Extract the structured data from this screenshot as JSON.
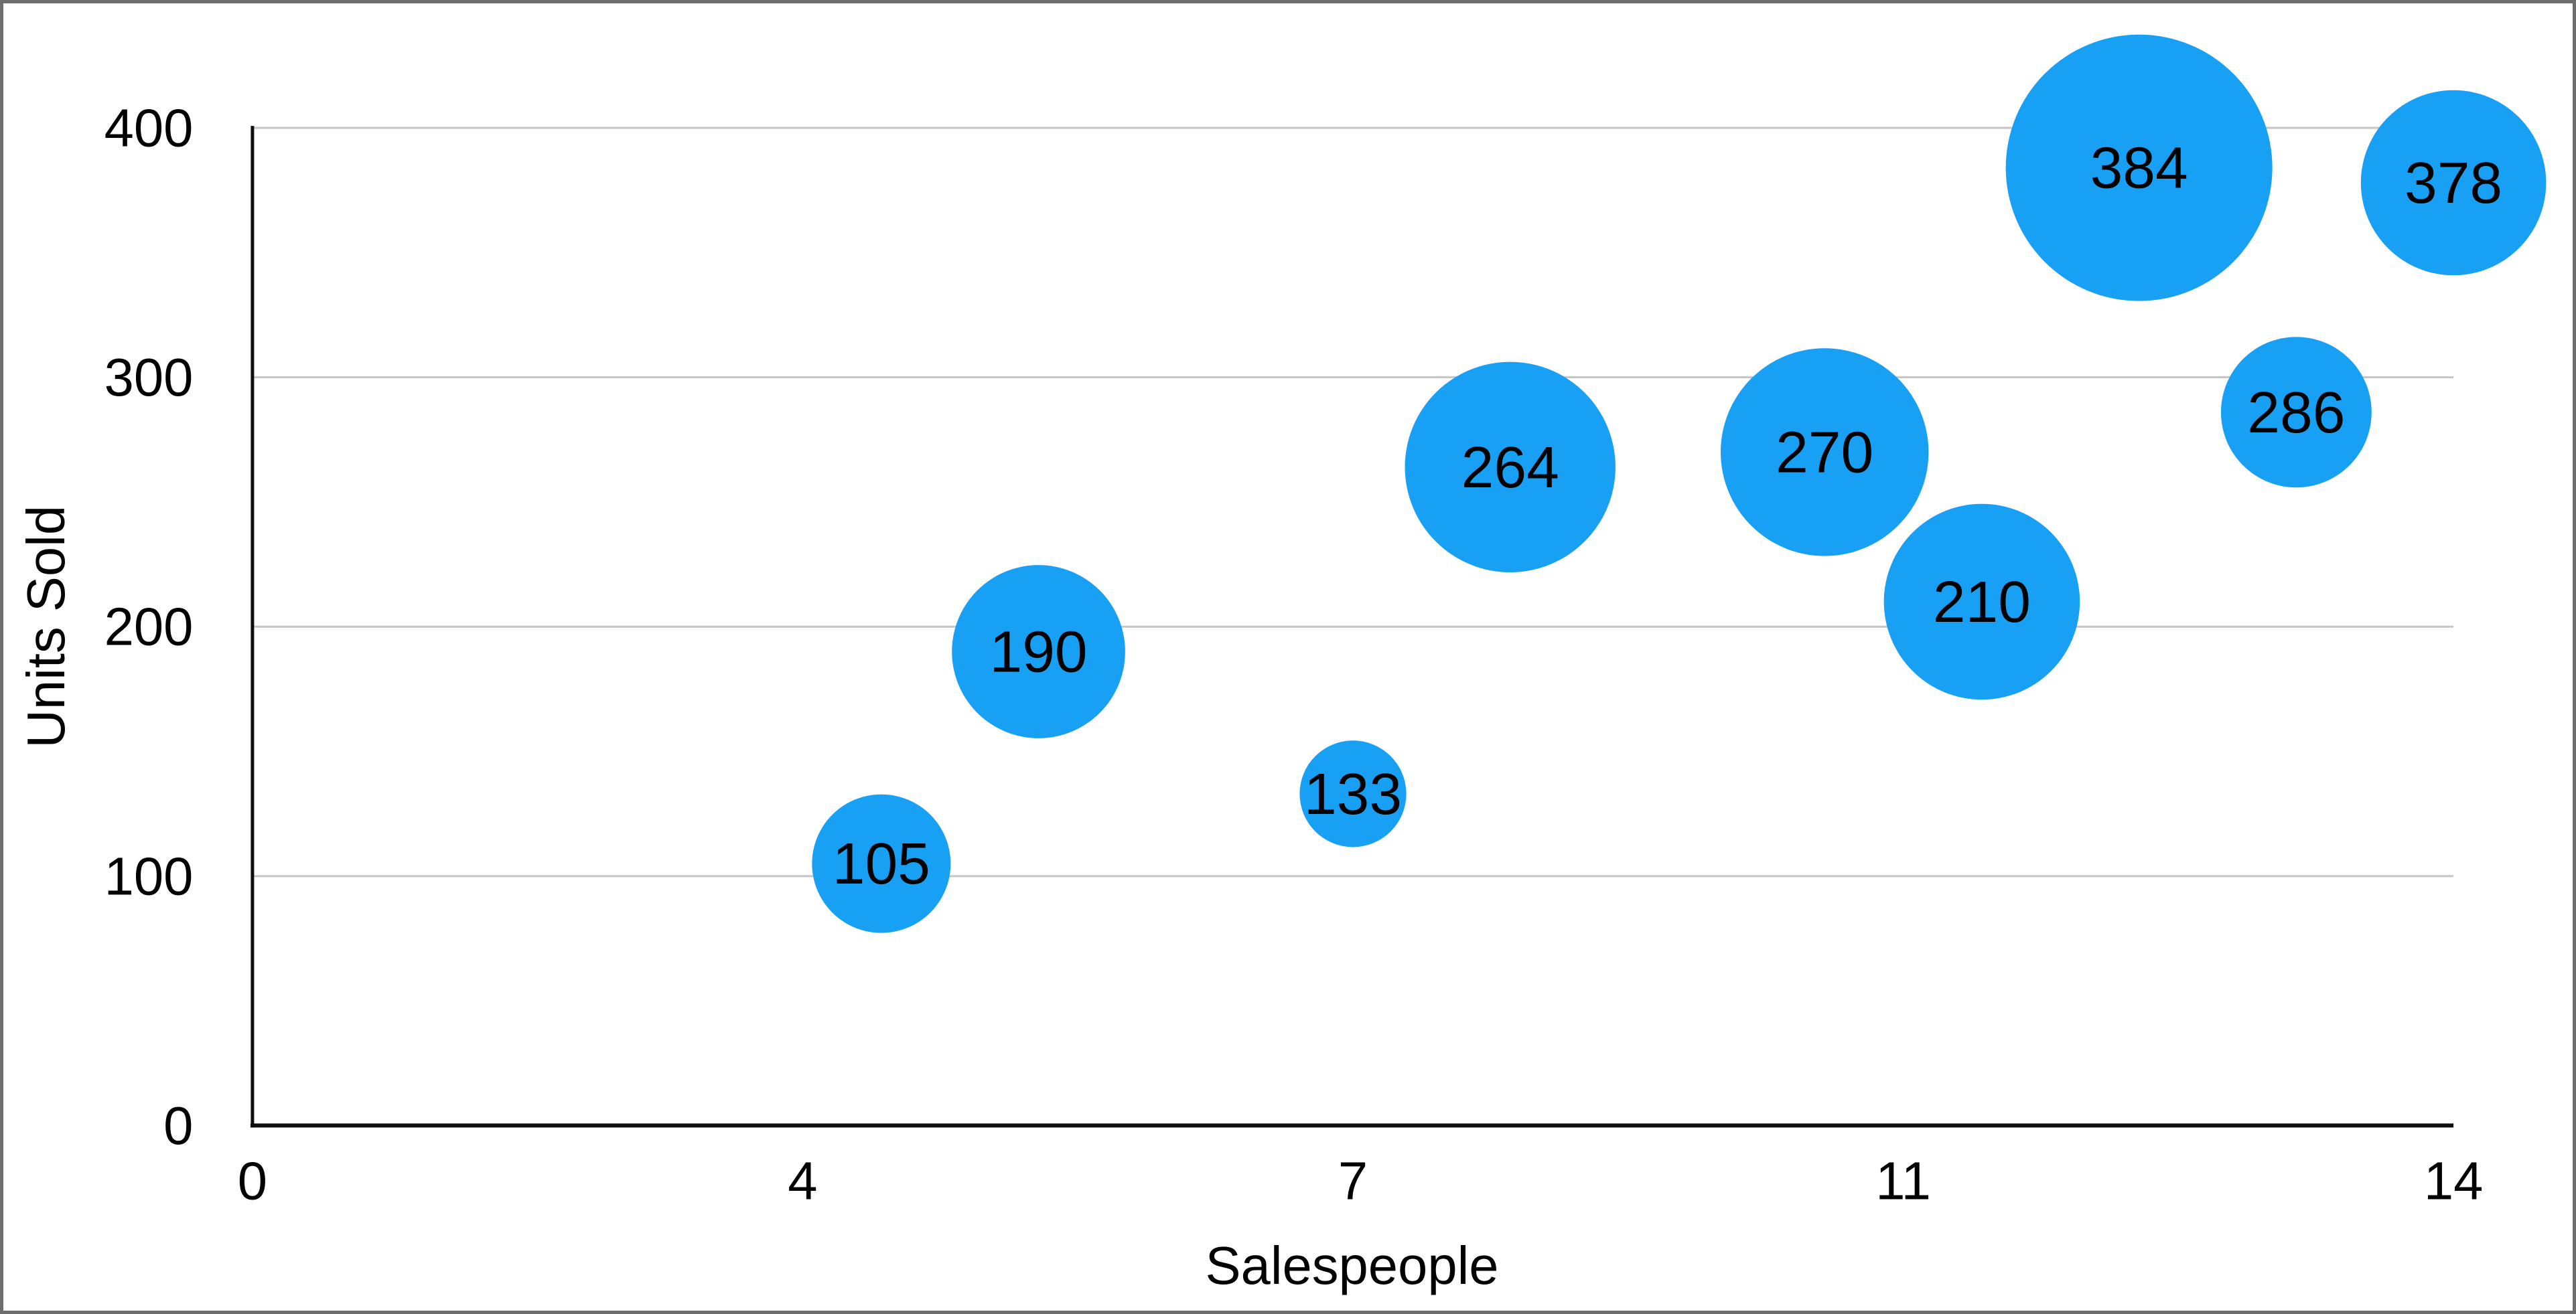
{
  "chart_data": {
    "type": "bubble",
    "title": "",
    "xlabel": "Salespeople",
    "ylabel": "Units Sold",
    "xlim": [
      0,
      14
    ],
    "ylim": [
      0,
      400
    ],
    "grid": "horizontal-only",
    "legend": "none",
    "x_ticks": [
      {
        "value": 0,
        "label": "0"
      },
      {
        "value": 3.5,
        "label": "4"
      },
      {
        "value": 7,
        "label": "7"
      },
      {
        "value": 10.5,
        "label": "11"
      },
      {
        "value": 14,
        "label": "14"
      }
    ],
    "y_ticks": [
      {
        "value": 0,
        "label": "0"
      },
      {
        "value": 100,
        "label": "100"
      },
      {
        "value": 200,
        "label": "200"
      },
      {
        "value": 300,
        "label": "300"
      },
      {
        "value": 400,
        "label": "400"
      }
    ],
    "points": [
      {
        "salespeople": 4,
        "units_sold": 105,
        "label": "105",
        "radius_px": 104
      },
      {
        "salespeople": 5,
        "units_sold": 190,
        "label": "190",
        "radius_px": 130
      },
      {
        "salespeople": 7,
        "units_sold": 133,
        "label": "133",
        "radius_px": 80
      },
      {
        "salespeople": 8,
        "units_sold": 264,
        "label": "264",
        "radius_px": 158
      },
      {
        "salespeople": 10,
        "units_sold": 270,
        "label": "270",
        "radius_px": 156
      },
      {
        "salespeople": 11,
        "units_sold": 210,
        "label": "210",
        "radius_px": 147
      },
      {
        "salespeople": 12,
        "units_sold": 384,
        "label": "384",
        "radius_px": 200
      },
      {
        "salespeople": 13,
        "units_sold": 286,
        "label": "286",
        "radius_px": 113
      },
      {
        "salespeople": 14,
        "units_sold": 378,
        "label": "378",
        "radius_px": 139
      }
    ],
    "colors": {
      "bubble_fill": "#18A0F5",
      "bubble_label": "#000000",
      "axis_line": "#0d0d0d",
      "gridline": "#c5c5c5",
      "tick_label": "#000000",
      "frame_border": "#6e6e6e",
      "background": "#ffffff"
    }
  }
}
